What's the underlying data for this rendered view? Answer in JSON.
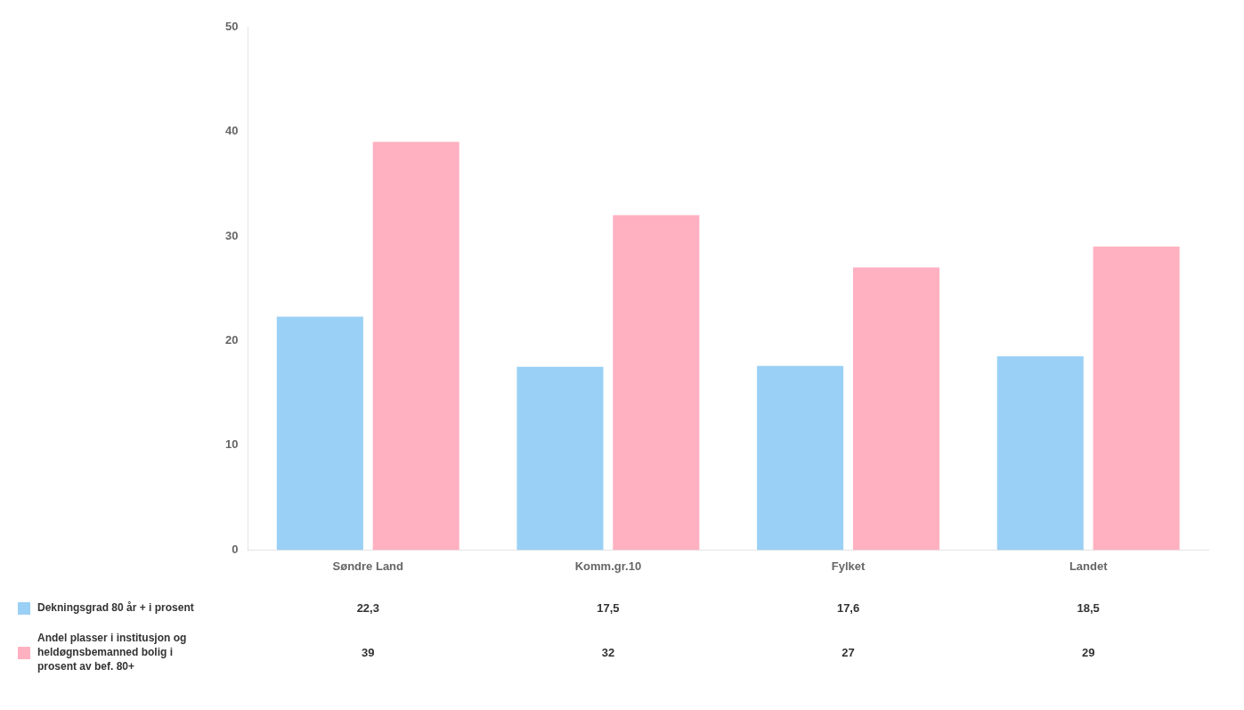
{
  "chart_data": {
    "type": "bar",
    "categories": [
      "Søndre Land",
      "Komm.gr.10",
      "Fylket",
      "Landet"
    ],
    "series": [
      {
        "name": "Dekningsgrad 80 år + i prosent",
        "values": [
          22.3,
          17.5,
          17.6,
          18.5
        ],
        "value_labels": [
          "22,3",
          "17,5",
          "17,6",
          "18,5"
        ]
      },
      {
        "name": "Andel plasser i institusjon og\nheldøgnsbemanned bolig i\nprosent av bef. 80+",
        "values": [
          39,
          32,
          27,
          29
        ],
        "value_labels": [
          "39",
          "32",
          "27",
          "29"
        ]
      }
    ],
    "ylim": [
      0,
      50
    ],
    "yticks": [
      0,
      10,
      20,
      30,
      40,
      50
    ],
    "grid": false
  }
}
